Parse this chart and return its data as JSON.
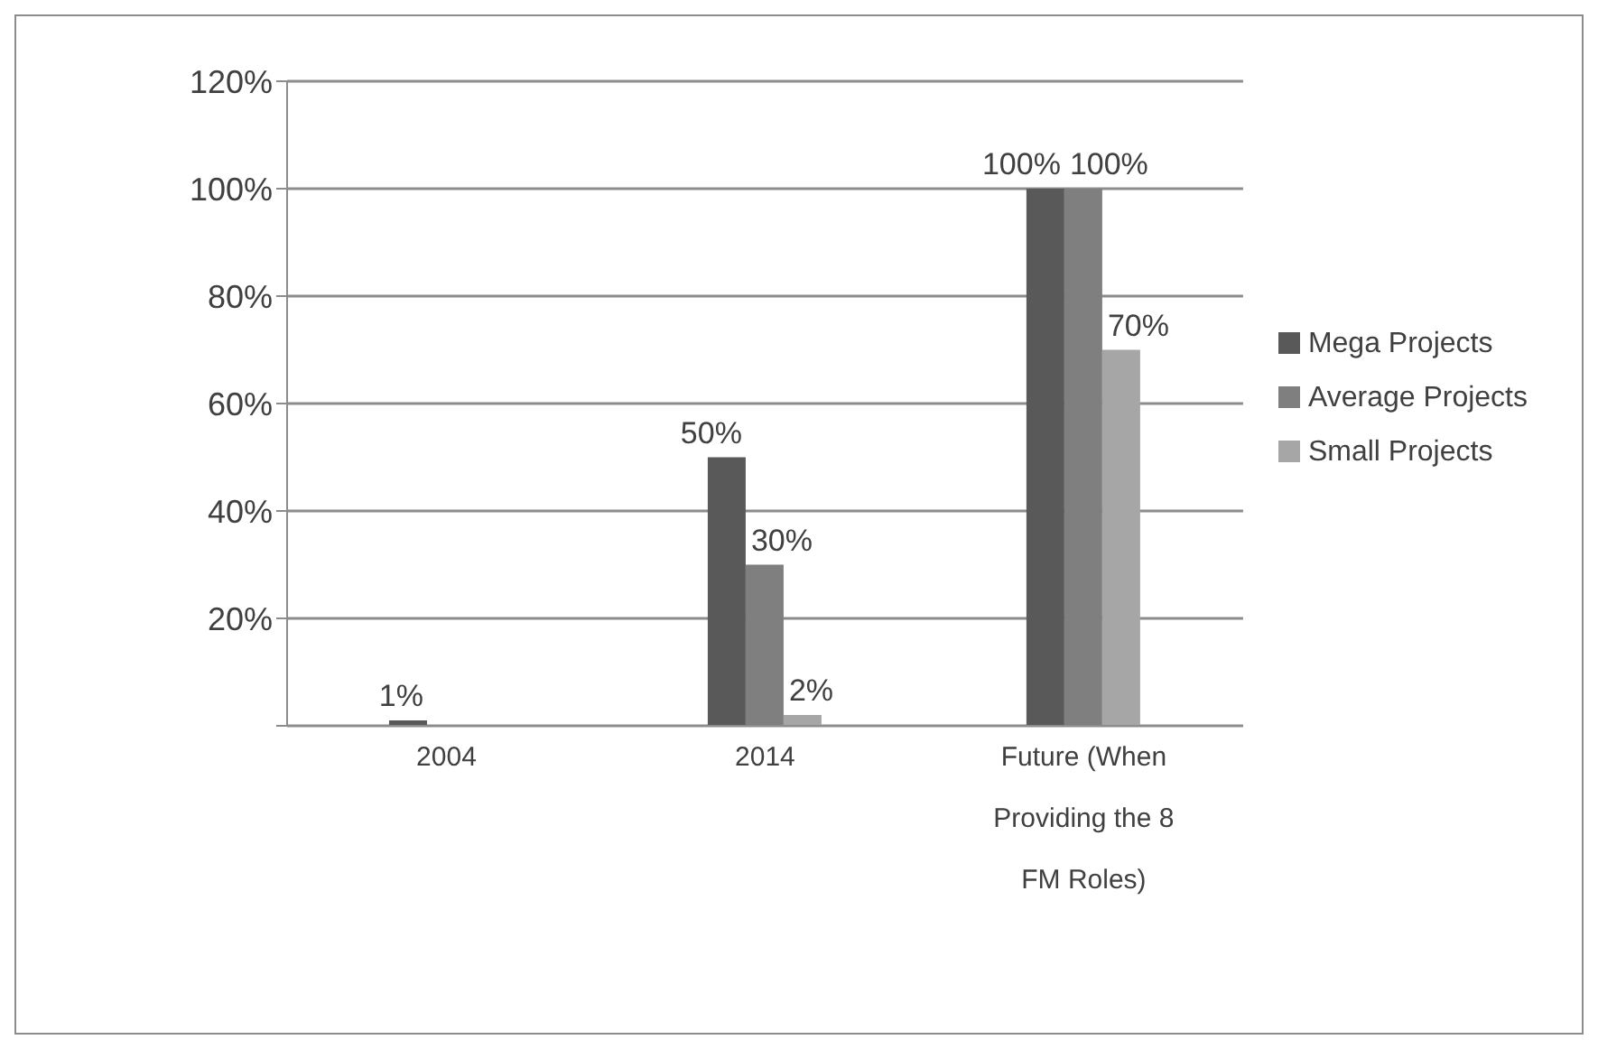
{
  "chart_data": {
    "type": "bar",
    "categories": [
      "2004",
      "2014",
      "Future (When Providing the 8 FM Roles)"
    ],
    "series": [
      {
        "name": "Mega Projects",
        "color": "#595959",
        "values": [
          1,
          50,
          100
        ],
        "value_labels": [
          "1%",
          "50%",
          "100%"
        ]
      },
      {
        "name": "Average Projects",
        "color": "#7f7f7f",
        "values": [
          null,
          30,
          100
        ],
        "value_labels": [
          null,
          "30%",
          "100%"
        ]
      },
      {
        "name": "Small Projects",
        "color": "#a6a6a6",
        "values": [
          null,
          2,
          70
        ],
        "value_labels": [
          null,
          "2%",
          "70%"
        ]
      }
    ],
    "ylim": [
      0,
      120
    ],
    "yticks": [
      {
        "value": 0,
        "label": null
      },
      {
        "value": 20,
        "label": "20%"
      },
      {
        "value": 40,
        "label": "40%"
      },
      {
        "value": 60,
        "label": "60%"
      },
      {
        "value": 80,
        "label": "80%"
      },
      {
        "value": 100,
        "label": "100%"
      },
      {
        "value": 120,
        "label": "120%"
      }
    ],
    "grid": "y",
    "legend": "right"
  }
}
